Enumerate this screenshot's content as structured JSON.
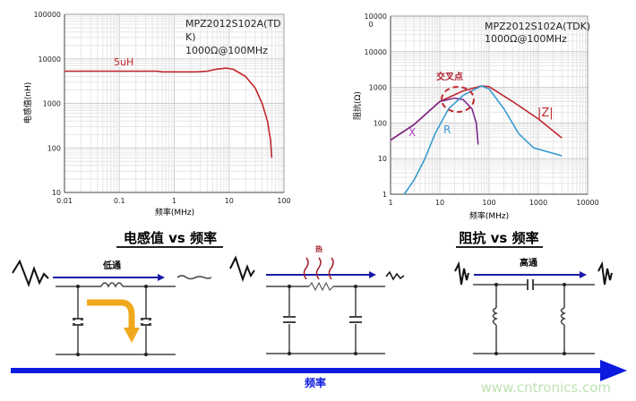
{
  "chart_data": [
    {
      "type": "line",
      "annotation": [
        "MPZ2012S102A(TD",
        "K)",
        "1000Ω@100MHz"
      ],
      "xlabel": "频率(MHz)",
      "ylabel": "电感值(nH)",
      "x_scale": "log",
      "y_scale": "log",
      "xlim": [
        0.01,
        100
      ],
      "ylim": [
        10,
        100000
      ],
      "x_ticks": [
        "0.01",
        "0.1",
        "1",
        "10",
        "100"
      ],
      "y_ticks": [
        "10",
        "100",
        "1000",
        "10000",
        "100000"
      ],
      "grid": true,
      "series": [
        {
          "name": "5uH",
          "color": "#c0272d",
          "x": [
            0.01,
            0.5,
            0.6,
            2.5,
            4,
            6,
            9,
            12,
            20,
            30,
            40,
            50,
            57,
            60
          ],
          "y": [
            5300,
            5300,
            5100,
            5100,
            5300,
            5900,
            6200,
            5800,
            4000,
            2200,
            1000,
            400,
            150,
            60
          ]
        }
      ]
    },
    {
      "type": "line",
      "annotation": [
        "MPZ2012S102A(TDK)",
        "1000Ω@100MHz"
      ],
      "callout": "交叉点",
      "xlabel": "频率(MHz)",
      "ylabel": "阻抗(Ω)",
      "x_scale": "log",
      "y_scale": "log",
      "xlim": [
        1,
        10000
      ],
      "ylim": [
        1,
        100000
      ],
      "x_ticks": [
        "1",
        "10",
        "100",
        "1000",
        "10000"
      ],
      "y_ticks": [
        "1",
        "10",
        "100",
        "1000",
        "10000",
        "10000\n0"
      ],
      "grid": true,
      "series": [
        {
          "name": "|Z|",
          "color": "#c0272d",
          "x": [
            1,
            3,
            10,
            30,
            70,
            100,
            300,
            1000,
            3000
          ],
          "y": [
            33,
            90,
            400,
            800,
            1100,
            1050,
            400,
            130,
            38
          ]
        },
        {
          "name": "X",
          "color": "#7b2a8c",
          "x": [
            1,
            3,
            10,
            20,
            30,
            45,
            55,
            60
          ],
          "y": [
            33,
            90,
            400,
            500,
            450,
            250,
            100,
            25
          ]
        },
        {
          "name": "R",
          "color": "#3a9ad0",
          "x": [
            1.9,
            3,
            5,
            8,
            15,
            30,
            70,
            100,
            200,
            400,
            800,
            3000
          ],
          "y": [
            1,
            2.5,
            10,
            50,
            250,
            600,
            1100,
            900,
            250,
            50,
            20,
            12
          ]
        }
      ]
    }
  ],
  "sections": {
    "left_title": "电感值 vs 频率",
    "right_title": "阻抗 vs 频率",
    "lowpass_label": "低通",
    "heat_label": "热",
    "highpass_label": "高通",
    "axis_label": "频率"
  },
  "colors": {
    "blue": "#1a1aa8",
    "axis_blue": "#0a1adf",
    "orange": "#f0a81c",
    "heat": "#a01c28"
  },
  "watermark": "www.cntronics.com"
}
